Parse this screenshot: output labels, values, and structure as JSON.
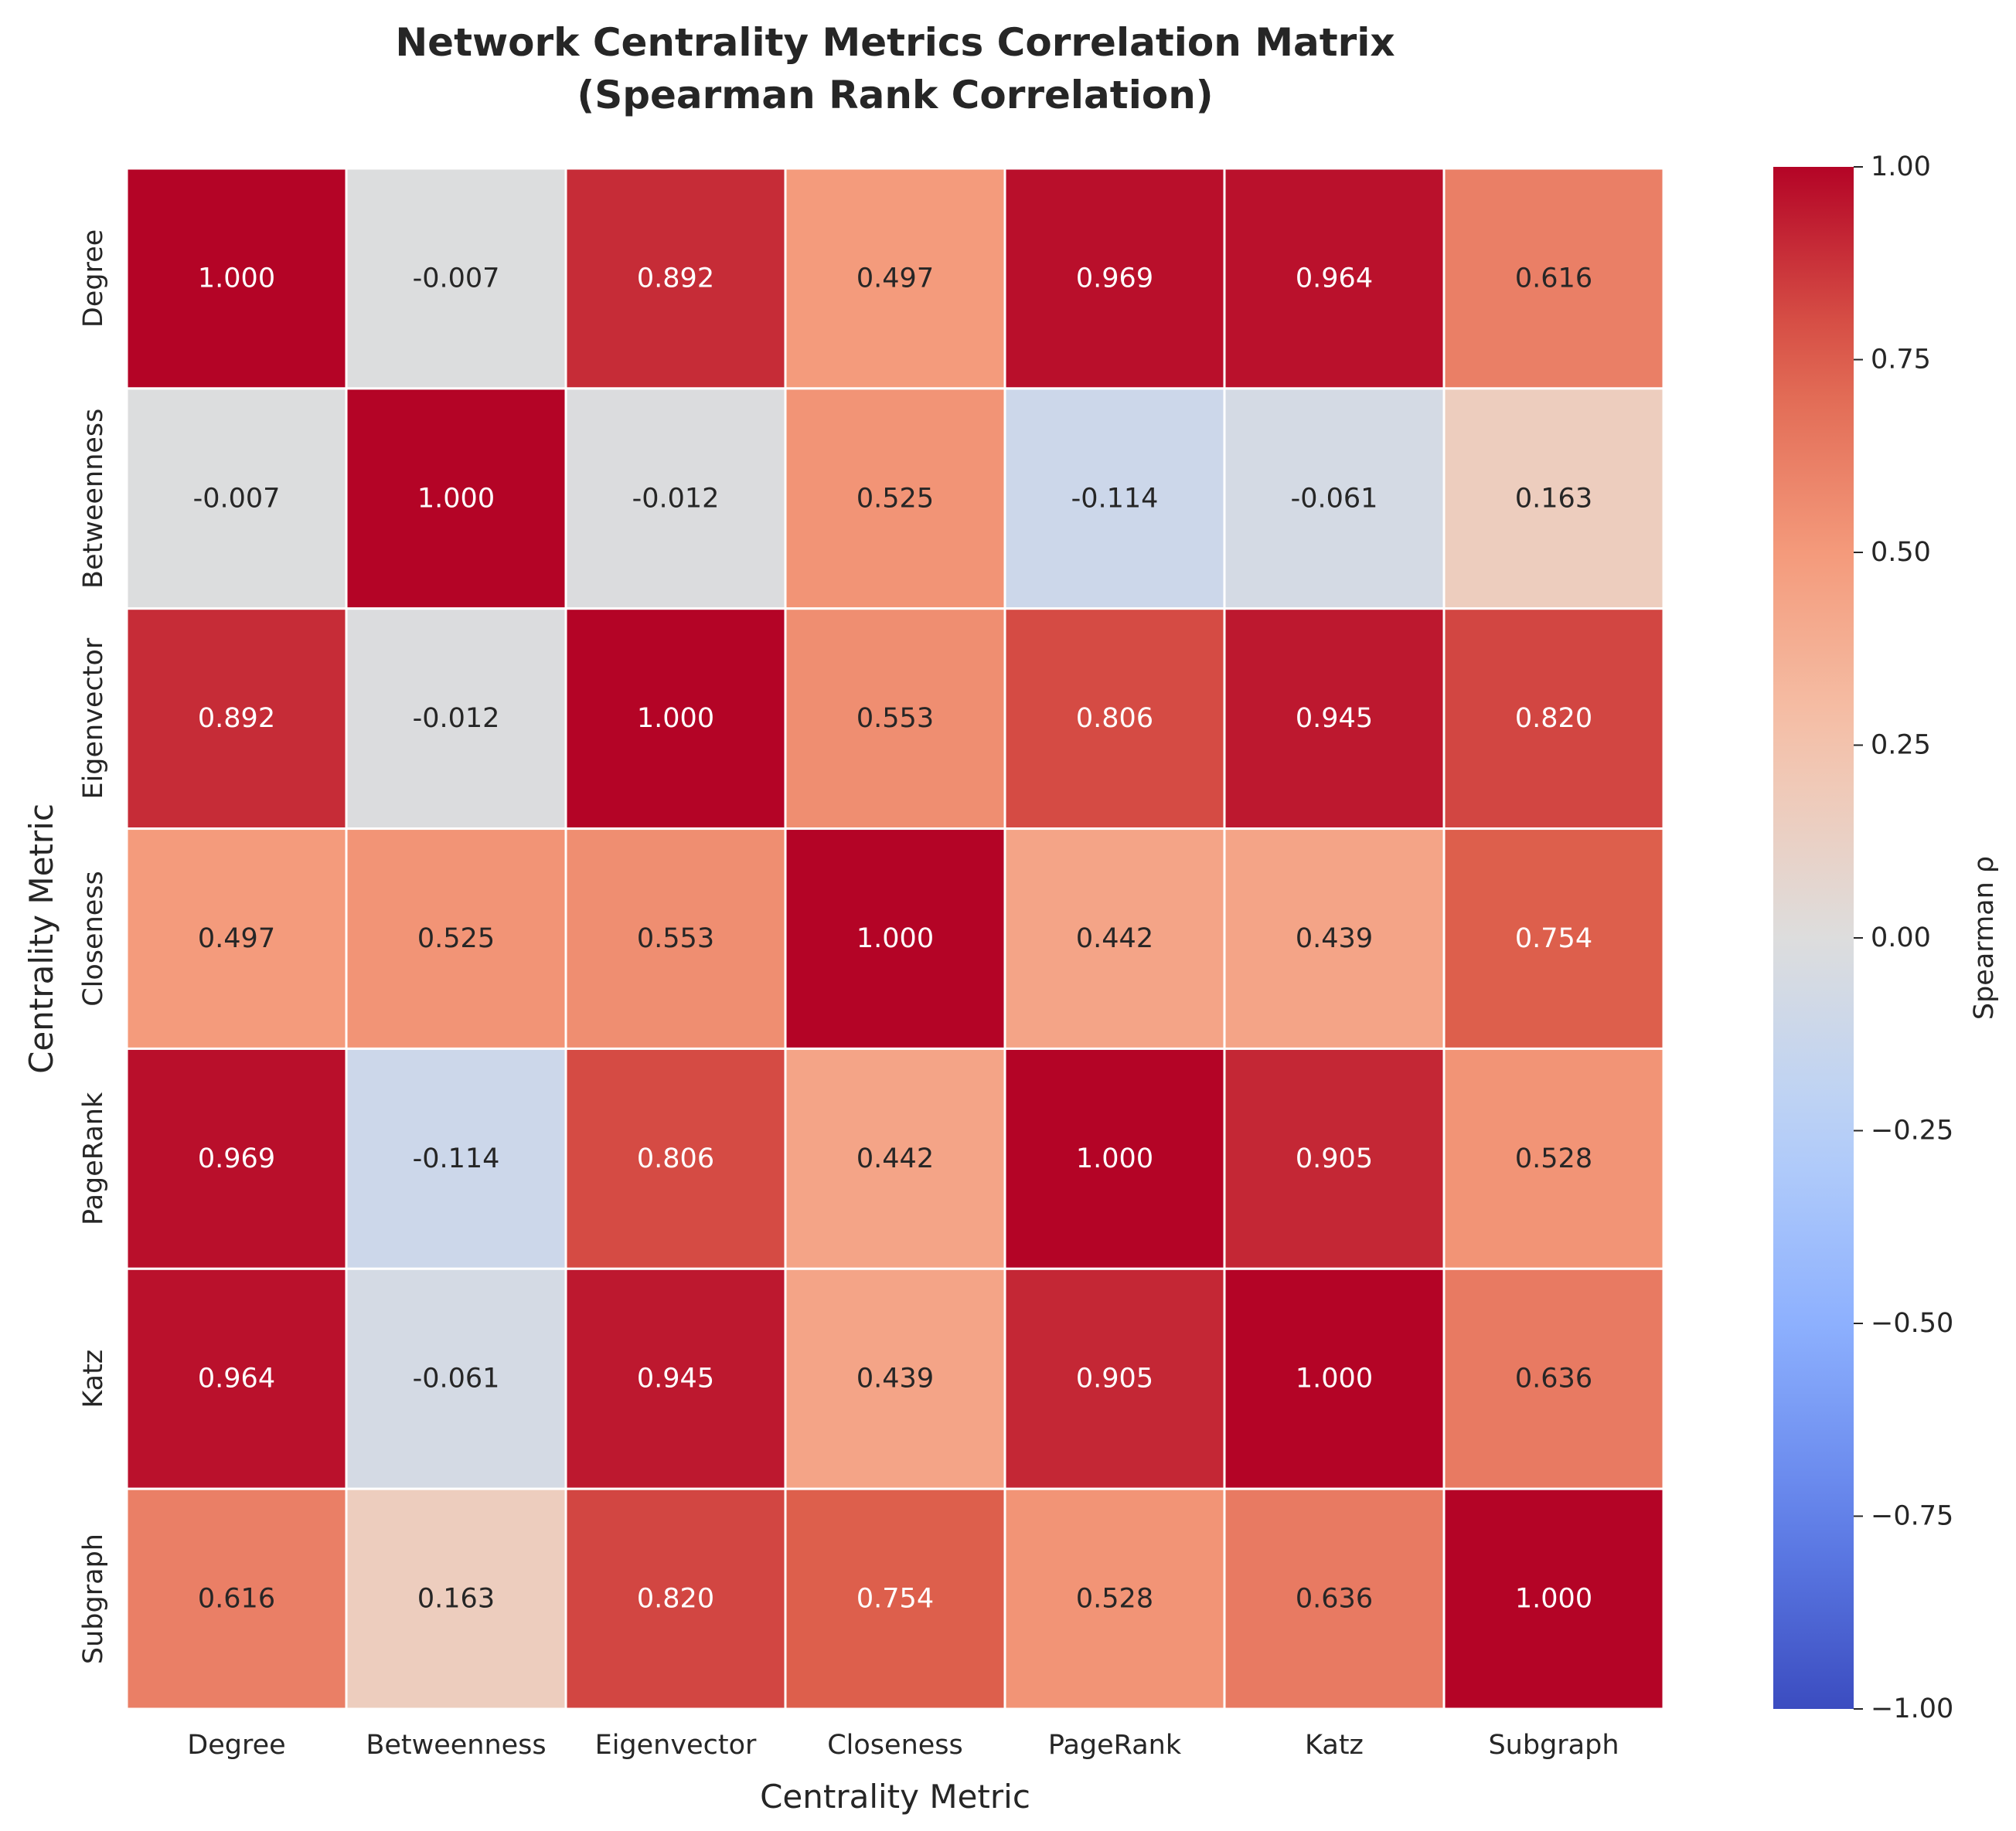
{
  "chart_data": {
    "type": "heatmap",
    "title": [
      "Network Centrality Metrics Correlation Matrix",
      "(Spearman Rank Correlation)"
    ],
    "xlabel": "Centrality Metric",
    "ylabel": "Centrality Metric",
    "colorbar_label": "Spearman ρ",
    "colormap": "coolwarm",
    "vmin": -1.0,
    "vmax": 1.0,
    "colorbar_ticks": [
      "1.00",
      "0.75",
      "0.50",
      "0.25",
      "0.00",
      "−0.25",
      "−0.50",
      "−0.75",
      "−1.00"
    ],
    "colorbar_tick_values": [
      1.0,
      0.75,
      0.5,
      0.25,
      0.0,
      -0.25,
      -0.5,
      -0.75,
      -1.0
    ],
    "x_categories": [
      "Degree",
      "Betweenness",
      "Eigenvector",
      "Closeness",
      "PageRank",
      "Katz",
      "Subgraph"
    ],
    "y_categories": [
      "Degree",
      "Betweenness",
      "Eigenvector",
      "Closeness",
      "PageRank",
      "Katz",
      "Subgraph"
    ],
    "values": [
      [
        1.0,
        -0.007,
        0.892,
        0.497,
        0.969,
        0.964,
        0.616
      ],
      [
        -0.007,
        1.0,
        -0.012,
        0.525,
        -0.114,
        -0.061,
        0.163
      ],
      [
        0.892,
        -0.012,
        1.0,
        0.553,
        0.806,
        0.945,
        0.82
      ],
      [
        0.497,
        0.525,
        0.553,
        1.0,
        0.442,
        0.439,
        0.754
      ],
      [
        0.969,
        -0.114,
        0.806,
        0.442,
        1.0,
        0.905,
        0.528
      ],
      [
        0.964,
        -0.061,
        0.945,
        0.439,
        0.905,
        1.0,
        0.636
      ],
      [
        0.616,
        0.163,
        0.82,
        0.754,
        0.528,
        0.636,
        1.0
      ]
    ],
    "annotation_format": "0.000"
  }
}
